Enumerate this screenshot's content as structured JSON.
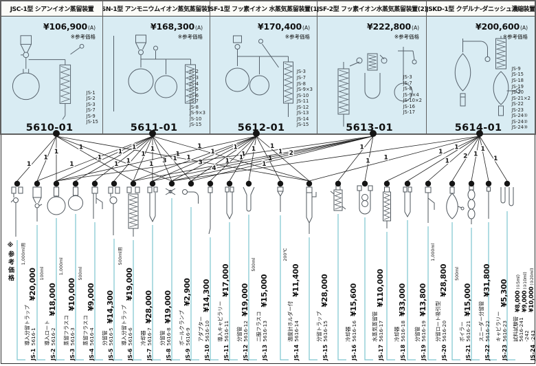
{
  "footer_note": "※参考価格",
  "panels": [
    {
      "title": "JSC-1型 シアンイオン蒸留装置",
      "price": "¥106,900",
      "grade": "(A)",
      "price_note": "※参考価格",
      "code": "5610-01",
      "includes": [
        "JS-1",
        "JS-2",
        "JS-3",
        "JS-7",
        "JS-9",
        "JS-15"
      ]
    },
    {
      "title": "JSN-1型 アンモニウムイオン蒸気蒸留装置",
      "price": "¥168,300",
      "grade": "(A)",
      "price_note": "※参考価格",
      "code": "5611-01",
      "includes": [
        "JS-2",
        "JS-3",
        "JS-4",
        "JS-5",
        "JS-6",
        "JS-7",
        "JS-8",
        "JS-9×3",
        "JS-10",
        "JS-15"
      ]
    },
    {
      "title": "JSF-1型 フッ素イオン 水蒸気蒸留装置(1)",
      "price": "¥170,400",
      "grade": "(A)",
      "price_note": "※参考価格",
      "code": "5612-01",
      "includes": [
        "JS-3",
        "JS-7",
        "JS-8",
        "JS-9×3",
        "JS-10",
        "JS-11",
        "JS-12",
        "JS-13",
        "JS-14",
        "JS-15"
      ]
    },
    {
      "title": "JSF-2型 フッ素イオン水蒸気蒸留装置(2)",
      "price": "¥222,800",
      "grade": "(A)",
      "price_note": "※参考価格",
      "code": "5613-01",
      "includes": [
        "JS-3",
        "JS-7",
        "JS-8",
        "JS-9×4",
        "JS-10×2",
        "JS-16",
        "JS-17"
      ]
    },
    {
      "title": "JSKD-1型 クデルナ-ダニッシュ濃縮装置",
      "price": "¥200,600",
      "grade": "(A)",
      "price_note": "※参考価格",
      "code": "5614-01",
      "includes": [
        "JS-9",
        "JS-15",
        "JS-18",
        "JS-19",
        "JS-20",
        "JS-21×2",
        "JS-22",
        "JS-23",
        "JS-24①",
        "JS-24②",
        "JS-24③"
      ]
    }
  ],
  "parts": [
    {
      "id": "JS-1",
      "name": "導入分留トラップ",
      "code": "5616-1",
      "price": "¥20,000",
      "note": "1,000ml用",
      "icon": "inlet-trap"
    },
    {
      "id": "JS-2",
      "name": "導入ロート",
      "code": "5616-2",
      "price": "¥18,000",
      "note": "100ml",
      "icon": "funnel"
    },
    {
      "id": "JS-3",
      "name": "蒸留フラスコ",
      "code": "5616-3",
      "price": "¥10,000",
      "note": "1,000ml",
      "icon": "flask-large"
    },
    {
      "id": "JS-4",
      "name": "蒸留フラスコ",
      "code": "5616-4",
      "price": "¥9,000",
      "note": "500ml",
      "icon": "flask-small"
    },
    {
      "id": "JS-5",
      "name": "分留管",
      "code": "5616-5",
      "price": "¥14,300",
      "note": "",
      "icon": "side-arm-tube"
    },
    {
      "id": "JS-6",
      "name": "導入分留トラップ",
      "code": "5616-6",
      "price": "¥19,000",
      "note": "500ml用",
      "icon": "inlet-trap-bulb"
    },
    {
      "id": "JS-7",
      "name": "冷却器",
      "code": "5616-7",
      "price": "¥28,000",
      "note": "",
      "icon": "coil-condenser"
    },
    {
      "id": "JS-8",
      "name": "分留管",
      "code": "5616-8",
      "price": "¥19,000",
      "note": "",
      "icon": "fractionating-tube"
    },
    {
      "id": "JS-9",
      "name": "ボールクランプ",
      "code": "5616-9",
      "price": "¥2,900",
      "note": "",
      "icon": "ball-clamp"
    },
    {
      "id": "JS-10",
      "name": "アダプター",
      "code": "5616-10",
      "price": "¥14,300",
      "note": "",
      "icon": "bent-adapter"
    },
    {
      "id": "JS-11",
      "name": "導入キャピラリー",
      "code": "5616-11",
      "price": "¥17,000",
      "note": "",
      "icon": "capillary-long"
    },
    {
      "id": "JS-12",
      "name": "分留管",
      "code": "5616-12",
      "price": "¥19,000",
      "note": "",
      "icon": "fractionating-tube"
    },
    {
      "id": "JS-13",
      "name": "二股フラスコ",
      "code": "5616-13",
      "price": "¥15,000",
      "note": "500ml",
      "icon": "two-neck-flask"
    },
    {
      "id": "JS-14",
      "name": "温度計ホルダー付",
      "code": "5616-14",
      "price": "¥11,400",
      "note": "200℃",
      "icon": "thermometer-holder"
    },
    {
      "id": "JS-15",
      "name": "分留トラップ",
      "code": "5616-15",
      "price": "¥28,000",
      "note": "",
      "icon": "trap-tube"
    },
    {
      "id": "JS-16",
      "name": "冷却器",
      "code": "5616-16",
      "price": "¥15,600",
      "note": "",
      "icon": "condenser-short"
    },
    {
      "id": "JS-17",
      "name": "水蒸気蒸留管",
      "code": "5616-17",
      "price": "¥110,000",
      "note": "",
      "icon": "steam-tube"
    },
    {
      "id": "JS-18",
      "name": "冷却器",
      "code": "5616-18",
      "price": "¥33,000",
      "note": "",
      "icon": "coil-column"
    },
    {
      "id": "JS-19",
      "name": "分留管",
      "code": "5616-19",
      "price": "¥13,800",
      "note": "",
      "icon": "fractionating-tube"
    },
    {
      "id": "JS-20",
      "name": "分留ロート吸引型",
      "code": "5616-20",
      "price": "¥28,800",
      "note": "1,000ml",
      "icon": "suction-funnel"
    },
    {
      "id": "JS-21",
      "name": "ボイラー",
      "code": "5616-21",
      "price": "¥15,000",
      "note": "500ml",
      "icon": "boiler-flask"
    },
    {
      "id": "JS-22",
      "name": "スニーダー分留管",
      "code": "5616-22",
      "price": "¥31,800",
      "note": "",
      "icon": "snyder-column"
    },
    {
      "id": "JS-23",
      "name": "キャピラリー",
      "code": "5616-23",
      "price": "¥5,300",
      "note": "",
      "icon": "capillary"
    },
    {
      "id": "JS-24",
      "name": "試料試験管",
      "code": "5616-241",
      "icon": "test-tubes",
      "variants": [
        {
          "code": "5616-241",
          "price": "¥8,000",
          "note": "(①5ml)"
        },
        {
          "code": "-242",
          "price": "¥9,000",
          "note": "(②10ml)"
        },
        {
          "code": "-243",
          "price": "¥10,000",
          "note": "(③20ml)"
        }
      ]
    }
  ],
  "connections": [
    {
      "panel": 0,
      "part": 1,
      "qty": "1"
    },
    {
      "panel": 0,
      "part": 2,
      "qty": "1"
    },
    {
      "panel": 0,
      "part": 3,
      "qty": "1"
    },
    {
      "panel": 0,
      "part": 7,
      "qty": "1"
    },
    {
      "panel": 0,
      "part": 9,
      "qty": "1"
    },
    {
      "panel": 0,
      "part": 15,
      "qty": "1"
    },
    {
      "panel": 1,
      "part": 2,
      "qty": "1"
    },
    {
      "panel": 1,
      "part": 3,
      "qty": "1"
    },
    {
      "panel": 1,
      "part": 4,
      "qty": "1"
    },
    {
      "panel": 1,
      "part": 5,
      "qty": "1"
    },
    {
      "panel": 1,
      "part": 6,
      "qty": "1"
    },
    {
      "panel": 1,
      "part": 7,
      "qty": "1"
    },
    {
      "panel": 1,
      "part": 8,
      "qty": "1"
    },
    {
      "panel": 1,
      "part": 9,
      "qty": "3"
    },
    {
      "panel": 1,
      "part": 10,
      "qty": "1"
    },
    {
      "panel": 1,
      "part": 15,
      "qty": "1"
    },
    {
      "panel": 2,
      "part": 3,
      "qty": "1"
    },
    {
      "panel": 2,
      "part": 7,
      "qty": "1"
    },
    {
      "panel": 2,
      "part": 8,
      "qty": "1"
    },
    {
      "panel": 2,
      "part": 9,
      "qty": "3"
    },
    {
      "panel": 2,
      "part": 10,
      "qty": "1"
    },
    {
      "panel": 2,
      "part": 11,
      "qty": "1"
    },
    {
      "panel": 2,
      "part": 12,
      "qty": "1"
    },
    {
      "panel": 2,
      "part": 13,
      "qty": "1"
    },
    {
      "panel": 2,
      "part": 14,
      "qty": "1"
    },
    {
      "panel": 2,
      "part": 15,
      "qty": "1"
    },
    {
      "panel": 3,
      "part": 3,
      "qty": "1"
    },
    {
      "panel": 3,
      "part": 7,
      "qty": "1"
    },
    {
      "panel": 3,
      "part": 8,
      "qty": "1"
    },
    {
      "panel": 3,
      "part": 9,
      "qty": "4"
    },
    {
      "panel": 3,
      "part": 10,
      "qty": "2"
    },
    {
      "panel": 3,
      "part": 16,
      "qty": "1"
    },
    {
      "panel": 3,
      "part": 17,
      "qty": "1"
    },
    {
      "panel": 4,
      "part": 9,
      "qty": "1"
    },
    {
      "panel": 4,
      "part": 15,
      "qty": "1"
    },
    {
      "panel": 4,
      "part": 18,
      "qty": "1"
    },
    {
      "panel": 4,
      "part": 19,
      "qty": "1"
    },
    {
      "panel": 4,
      "part": 20,
      "qty": "1"
    },
    {
      "panel": 4,
      "part": 21,
      "qty": "2"
    },
    {
      "panel": 4,
      "part": 22,
      "qty": "1"
    },
    {
      "panel": 4,
      "part": 23,
      "qty": "1"
    },
    {
      "panel": 4,
      "part": 24,
      "qty": "1"
    }
  ]
}
